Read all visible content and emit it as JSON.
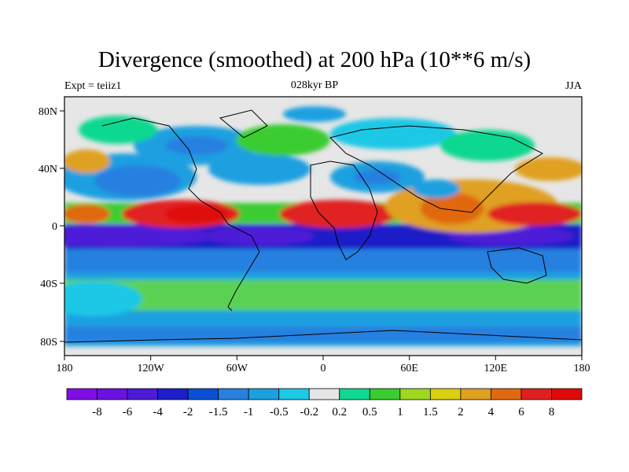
{
  "title": "Divergence (smoothed) at 200 hPa (10**6 m/s)",
  "subtitle_left": "Expt = teiiz1",
  "subtitle_center": "028kyr BP",
  "subtitle_right": "JJA",
  "axes": {
    "x_ticks": [
      "180",
      "120W",
      "60W",
      "0",
      "60E",
      "120E",
      "180"
    ],
    "y_ticks": [
      "80N",
      "40N",
      "0",
      "40S",
      "80S"
    ],
    "x_range": [
      -180,
      180
    ],
    "y_range": [
      -90,
      90
    ]
  },
  "colorbar": {
    "labels": [
      "-8",
      "-6",
      "-4",
      "-2",
      "-1.5",
      "-1",
      "-0.5",
      "-0.2",
      "0.2",
      "0.5",
      "1",
      "1.5",
      "2",
      "4",
      "6",
      "8"
    ],
    "colors": [
      "#7f0ee6",
      "#6a12e0",
      "#4d1ad8",
      "#1e1ec8",
      "#0a4fd6",
      "#2880e0",
      "#1ba0e0",
      "#1ec8e6",
      "#e6e6e6",
      "#10d890",
      "#3acc30",
      "#a0d820",
      "#d8d010",
      "#e0a020",
      "#e06810",
      "#e02020",
      "#e00a0a"
    ]
  }
}
